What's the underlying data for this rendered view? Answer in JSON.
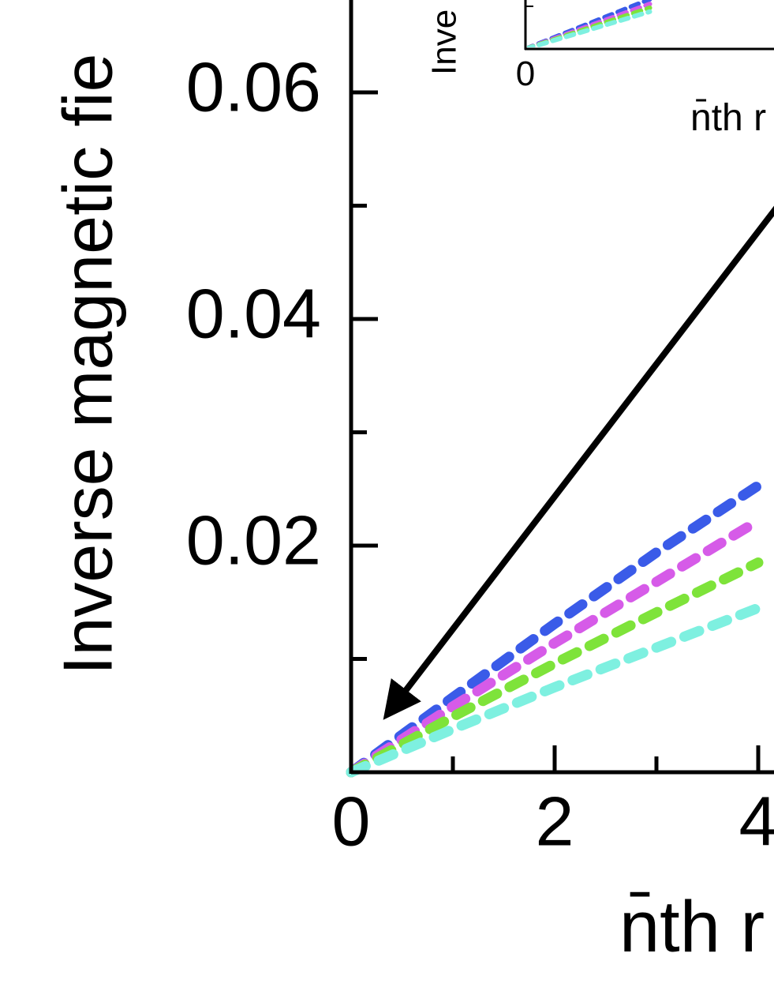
{
  "chart_data": [
    {
      "type": "line",
      "ylabel": "Inverse magnetic fie",
      "xlabel": "n̄th r",
      "x": [
        0,
        1,
        2,
        3,
        4
      ],
      "series": [
        {
          "color": "#3a5be8",
          "values": [
            0,
            0.0066,
            0.0131,
            0.0194,
            0.0253
          ]
        },
        {
          "color": "#d65be8",
          "values": [
            0,
            0.0058,
            0.0114,
            0.0168,
            0.0222
          ]
        },
        {
          "color": "#7ee33a",
          "values": [
            0,
            0.0049,
            0.0096,
            0.0141,
            0.0185
          ]
        },
        {
          "color": "#7ef0e0",
          "values": [
            0,
            0.0038,
            0.0075,
            0.011,
            0.0145
          ]
        }
      ],
      "xlim": [
        0,
        4.15
      ],
      "ylim": [
        0,
        0.068
      ],
      "xticks": [
        0,
        2,
        4
      ],
      "xticks_minor": [
        1,
        3
      ],
      "yticks": [
        0.02,
        0.04,
        0.06
      ],
      "yticks_minor": [
        0.01,
        0.03,
        0.05
      ]
    },
    {
      "type": "line",
      "ylabel": "Inve",
      "xlabel": "n̄th r",
      "x": [
        0,
        0.4,
        0.8,
        1.2
      ],
      "series": [
        {
          "color": "#3a5be8",
          "values": [
            0,
            0.0052,
            0.0104,
            0.0156
          ]
        },
        {
          "color": "#d65be8",
          "values": [
            0,
            0.0047,
            0.0094,
            0.0141
          ]
        },
        {
          "color": "#7ee33a",
          "values": [
            0,
            0.0043,
            0.0086,
            0.0129
          ]
        },
        {
          "color": "#7ef0e0",
          "values": [
            0,
            0.0039,
            0.0078,
            0.0117
          ]
        }
      ],
      "xlim": [
        0,
        2.4
      ],
      "ylim": [
        0,
        0.06
      ],
      "xticks": [
        0
      ]
    }
  ]
}
